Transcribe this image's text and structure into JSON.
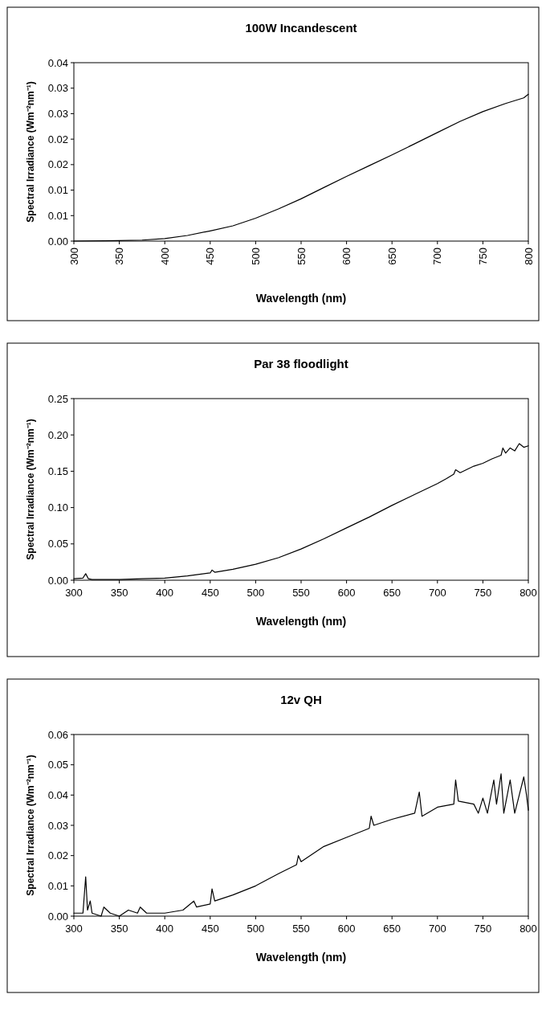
{
  "chart_data": [
    {
      "type": "line",
      "title": "100W Incandescent",
      "xlabel": "Wavelength (nm)",
      "ylabel": "Spectral Irradiance (Wm⁻²nm⁻¹)",
      "xlim": [
        300,
        800
      ],
      "xticks": [
        300,
        350,
        400,
        450,
        500,
        550,
        600,
        650,
        700,
        750,
        800
      ],
      "ylim": [
        0,
        0.035
      ],
      "yticks": [
        {
          "value": 0,
          "label": "0.00"
        },
        {
          "value": 0.005,
          "label": "0.01"
        },
        {
          "value": 0.01,
          "label": "0.01"
        },
        {
          "value": 0.015,
          "label": "0.02"
        },
        {
          "value": 0.02,
          "label": "0.02"
        },
        {
          "value": 0.025,
          "label": "0.03"
        },
        {
          "value": 0.03,
          "label": "0.03"
        },
        {
          "value": 0.035,
          "label": "0.04"
        }
      ],
      "grid": false,
      "series": [
        {
          "color": "#000000",
          "x": [
            300,
            350,
            375,
            400,
            425,
            450,
            475,
            500,
            525,
            550,
            575,
            600,
            625,
            650,
            675,
            700,
            725,
            750,
            775,
            795,
            800
          ],
          "values": [
            0,
            0.0001,
            0.0002,
            0.0005,
            0.0011,
            0.002,
            0.003,
            0.0045,
            0.0063,
            0.0083,
            0.0105,
            0.0127,
            0.0148,
            0.0169,
            0.0191,
            0.0213,
            0.0235,
            0.0254,
            0.027,
            0.0281,
            0.0288
          ]
        }
      ]
    },
    {
      "type": "line",
      "title": "Par 38 floodlight",
      "xlabel": "Wavelength (nm)",
      "ylabel": "Spectral Irradiance (Wm⁻²nm⁻¹)",
      "xlim": [
        300,
        800
      ],
      "xticks": [
        300,
        350,
        400,
        450,
        500,
        550,
        600,
        650,
        700,
        750,
        800
      ],
      "ylim": [
        0,
        0.25
      ],
      "yticks": [
        {
          "value": 0,
          "label": "0.00"
        },
        {
          "value": 0.05,
          "label": "0.05"
        },
        {
          "value": 0.1,
          "label": "0.10"
        },
        {
          "value": 0.15,
          "label": "0.15"
        },
        {
          "value": 0.2,
          "label": "0.20"
        },
        {
          "value": 0.25,
          "label": "0.25"
        }
      ],
      "grid": false,
      "series": [
        {
          "color": "#000000",
          "x": [
            300,
            310,
            313,
            316,
            320,
            350,
            375,
            400,
            425,
            450,
            452,
            455,
            475,
            500,
            525,
            550,
            575,
            600,
            625,
            650,
            675,
            700,
            710,
            718,
            720,
            725,
            740,
            750,
            760,
            770,
            772,
            775,
            780,
            785,
            790,
            795,
            800
          ],
          "values": [
            0.002,
            0.003,
            0.009,
            0.002,
            0.001,
            0.001,
            0.002,
            0.003,
            0.006,
            0.01,
            0.014,
            0.011,
            0.015,
            0.022,
            0.031,
            0.043,
            0.057,
            0.072,
            0.087,
            0.103,
            0.118,
            0.133,
            0.14,
            0.146,
            0.152,
            0.148,
            0.157,
            0.161,
            0.167,
            0.172,
            0.182,
            0.175,
            0.182,
            0.178,
            0.188,
            0.183,
            0.185
          ]
        }
      ]
    },
    {
      "type": "line",
      "title": "12v QH",
      "xlabel": "Wavelength (nm)",
      "ylabel": "Spectral Irradiance (Wm⁻²nm⁻¹)",
      "xlim": [
        300,
        800
      ],
      "xticks": [
        300,
        350,
        400,
        450,
        500,
        550,
        600,
        650,
        700,
        750,
        800
      ],
      "ylim": [
        0,
        0.06
      ],
      "yticks": [
        {
          "value": 0,
          "label": "0.00"
        },
        {
          "value": 0.01,
          "label": "0.01"
        },
        {
          "value": 0.02,
          "label": "0.02"
        },
        {
          "value": 0.03,
          "label": "0.03"
        },
        {
          "value": 0.04,
          "label": "0.04"
        },
        {
          "value": 0.05,
          "label": "0.05"
        },
        {
          "value": 0.06,
          "label": "0.06"
        }
      ],
      "grid": false,
      "series": [
        {
          "color": "#000000",
          "x": [
            300,
            310,
            313,
            315,
            318,
            320,
            330,
            333,
            340,
            350,
            360,
            370,
            373,
            380,
            400,
            420,
            432,
            435,
            450,
            452,
            455,
            475,
            500,
            525,
            545,
            547,
            550,
            575,
            600,
            625,
            627,
            630,
            650,
            675,
            680,
            683,
            700,
            718,
            720,
            723,
            740,
            745,
            750,
            755,
            762,
            765,
            770,
            773,
            780,
            785,
            790,
            795,
            798,
            800
          ],
          "values": [
            0.001,
            0.001,
            0.013,
            0.002,
            0.005,
            0.001,
            0.0,
            0.003,
            0.001,
            0.0,
            0.002,
            0.001,
            0.003,
            0.001,
            0.001,
            0.002,
            0.005,
            0.003,
            0.004,
            0.009,
            0.005,
            0.007,
            0.01,
            0.014,
            0.017,
            0.02,
            0.018,
            0.023,
            0.026,
            0.029,
            0.033,
            0.03,
            0.032,
            0.034,
            0.041,
            0.033,
            0.036,
            0.037,
            0.045,
            0.038,
            0.037,
            0.034,
            0.039,
            0.034,
            0.045,
            0.037,
            0.047,
            0.034,
            0.045,
            0.034,
            0.04,
            0.046,
            0.04,
            0.035
          ]
        }
      ]
    }
  ]
}
